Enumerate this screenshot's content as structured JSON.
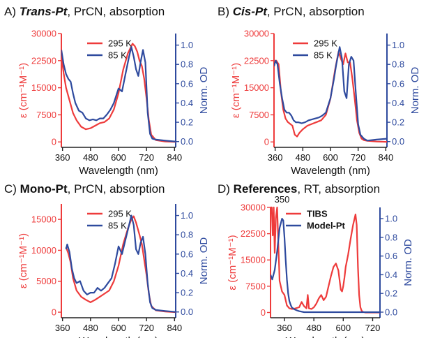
{
  "colors": {
    "red": "#ee3b3b",
    "blue": "#2e4a9e",
    "axis": "#222222"
  },
  "chart_data": [
    {
      "type": "line",
      "panel_label": "A)",
      "title_bold": "Trans-Pt",
      "title_bold_italic": true,
      "title_rest": ", PrCN, absorption",
      "xlabel": "Wavelength (nm)",
      "ylabel_left": "ε (cm⁻¹M⁻¹)",
      "ylabel_right": "Norm. OD",
      "xlim": [
        355,
        845
      ],
      "xticks": [
        "360",
        "480",
        "600",
        "720",
        "840"
      ],
      "ylim_left": [
        -1500,
        30000
      ],
      "yticks_left": [
        "0",
        "7500",
        "15000",
        "22500",
        "30000"
      ],
      "ylim_right": [
        -0.06,
        1.12
      ],
      "yticks_right": [
        "0.0",
        "0.2",
        "0.4",
        "0.6",
        "0.8",
        "1.0"
      ],
      "legend_position": "top-left",
      "series": [
        {
          "name": "295 K",
          "axis": "left",
          "color": "red",
          "x": [
            355,
            365,
            375,
            390,
            405,
            420,
            440,
            460,
            480,
            500,
            520,
            540,
            560,
            580,
            600,
            620,
            640,
            660,
            670,
            680,
            690,
            700,
            710,
            720,
            730,
            740,
            760,
            800,
            845
          ],
          "y": [
            24000,
            19000,
            15000,
            11500,
            8000,
            6000,
            4200,
            3500,
            3800,
            4500,
            5200,
            5500,
            6500,
            9000,
            13500,
            20000,
            24500,
            27200,
            26500,
            25000,
            22500,
            21000,
            17500,
            12000,
            6000,
            2000,
            500,
            100,
            0
          ]
        },
        {
          "name": "85 K",
          "axis": "right",
          "color": "blue",
          "x": [
            355,
            365,
            375,
            385,
            395,
            405,
            415,
            430,
            445,
            460,
            475,
            490,
            505,
            520,
            535,
            550,
            565,
            580,
            600,
            615,
            630,
            645,
            655,
            665,
            675,
            685,
            695,
            705,
            715,
            725,
            735,
            745,
            760,
            800,
            845
          ],
          "y": [
            0.95,
            0.8,
            0.7,
            0.65,
            0.62,
            0.5,
            0.4,
            0.32,
            0.3,
            0.24,
            0.22,
            0.23,
            0.22,
            0.24,
            0.24,
            0.28,
            0.33,
            0.4,
            0.55,
            0.52,
            0.7,
            0.88,
            0.98,
            0.88,
            0.75,
            0.68,
            0.83,
            0.95,
            0.82,
            0.3,
            0.08,
            0.03,
            0.02,
            0.01,
            0.0
          ]
        }
      ]
    },
    {
      "type": "line",
      "panel_label": "B)",
      "title_bold": "Cis-Pt",
      "title_bold_italic": true,
      "title_rest": ", PrCN, absorption",
      "xlabel": "Wavelength (nm)",
      "ylabel_left": "ε (cm⁻¹M⁻¹)",
      "ylabel_right": "Norm. OD",
      "xlim": [
        355,
        845
      ],
      "xticks": [
        "360",
        "480",
        "600",
        "720",
        "840"
      ],
      "ylim_left": [
        -1500,
        30000
      ],
      "yticks_left": [
        "0",
        "7500",
        "15000",
        "22500",
        "30000"
      ],
      "ylim_right": [
        -0.06,
        1.12
      ],
      "yticks_right": [
        "0.0",
        "0.2",
        "0.4",
        "0.6",
        "0.8",
        "1.0"
      ],
      "legend_position": "top-center",
      "series": [
        {
          "name": "295 K",
          "axis": "left",
          "color": "red",
          "x": [
            355,
            365,
            375,
            385,
            395,
            405,
            415,
            425,
            435,
            445,
            455,
            465,
            480,
            500,
            520,
            540,
            560,
            580,
            600,
            620,
            635,
            645,
            655,
            665,
            675,
            685,
            695,
            705,
            715,
            725,
            735,
            745,
            760,
            800,
            845
          ],
          "y": [
            22000,
            22500,
            21500,
            14000,
            9000,
            6500,
            5500,
            5000,
            4500,
            2000,
            1500,
            2500,
            3500,
            4500,
            5000,
            5500,
            6000,
            7500,
            12000,
            20000,
            25000,
            23000,
            21500,
            24500,
            22000,
            22000,
            17500,
            12000,
            6000,
            2500,
            900,
            500,
            300,
            100,
            0
          ]
        },
        {
          "name": "85 K",
          "axis": "right",
          "color": "blue",
          "x": [
            355,
            362,
            370,
            380,
            390,
            400,
            410,
            420,
            430,
            440,
            450,
            460,
            475,
            490,
            505,
            520,
            535,
            550,
            565,
            580,
            600,
            615,
            625,
            640,
            650,
            660,
            670,
            680,
            690,
            700,
            710,
            720,
            730,
            745,
            760,
            800,
            845
          ],
          "y": [
            0.78,
            0.84,
            0.8,
            0.6,
            0.45,
            0.33,
            0.3,
            0.3,
            0.27,
            0.22,
            0.2,
            0.2,
            0.19,
            0.2,
            0.22,
            0.23,
            0.24,
            0.25,
            0.27,
            0.3,
            0.45,
            0.65,
            0.8,
            0.98,
            0.86,
            0.52,
            0.45,
            0.8,
            0.88,
            0.84,
            0.5,
            0.18,
            0.07,
            0.03,
            0.01,
            0.02,
            0.03
          ]
        }
      ]
    },
    {
      "type": "line",
      "panel_label": "C)",
      "title_bold": "Mono-Pt",
      "title_bold_italic": false,
      "title_rest": ", PrCN, absorption",
      "xlabel": "Wavelength (nm)",
      "ylabel_left": "ε (cm⁻¹M⁻¹)",
      "ylabel_right": "Norm. OD",
      "xlim": [
        355,
        845
      ],
      "xticks": [
        "360",
        "480",
        "600",
        "720",
        "840"
      ],
      "ylim_left": [
        -900,
        17500
      ],
      "yticks_left": [
        "0",
        "5000",
        "10000",
        "15000"
      ],
      "ylim_right": [
        -0.06,
        1.12
      ],
      "yticks_right": [
        "0.0",
        "0.2",
        "0.4",
        "0.6",
        "0.8",
        "1.0"
      ],
      "legend_position": "top-left",
      "series": [
        {
          "name": "295 K",
          "axis": "left",
          "color": "red",
          "x": [
            375,
            385,
            395,
            405,
            420,
            440,
            460,
            480,
            500,
            520,
            540,
            560,
            580,
            600,
            620,
            640,
            655,
            665,
            675,
            690,
            700,
            710,
            720,
            730,
            740,
            760,
            800,
            845
          ],
          "y": [
            10500,
            9500,
            8000,
            5500,
            3500,
            2500,
            2000,
            1600,
            2000,
            2500,
            3000,
            3500,
            5000,
            7500,
            11000,
            13500,
            15000,
            15500,
            14500,
            12500,
            11000,
            8500,
            6000,
            3000,
            1000,
            300,
            100,
            0
          ]
        },
        {
          "name": "85 K",
          "axis": "right",
          "color": "blue",
          "x": [
            375,
            380,
            390,
            400,
            410,
            420,
            435,
            450,
            465,
            480,
            495,
            510,
            525,
            540,
            555,
            570,
            585,
            600,
            615,
            630,
            645,
            655,
            665,
            675,
            685,
            695,
            705,
            715,
            725,
            735,
            745,
            760,
            800,
            845
          ],
          "y": [
            0.65,
            0.7,
            0.62,
            0.45,
            0.35,
            0.3,
            0.32,
            0.22,
            0.18,
            0.2,
            0.2,
            0.25,
            0.22,
            0.25,
            0.3,
            0.35,
            0.5,
            0.68,
            0.6,
            0.75,
            0.9,
            1.0,
            0.9,
            0.65,
            0.6,
            0.72,
            0.78,
            0.6,
            0.3,
            0.1,
            0.04,
            0.02,
            0.01,
            0.0
          ]
        }
      ]
    },
    {
      "type": "line",
      "panel_label": "D)",
      "title_bold": "References",
      "title_bold_italic": false,
      "title_rest": ", RT, absorption",
      "xlabel": "Wavelength (nm)",
      "ylabel_left": "ε (cm⁻¹M⁻¹)",
      "ylabel_right": "Norm. OD",
      "xlim": [
        303,
        750
      ],
      "xticks": [
        "360",
        "480",
        "600",
        "720"
      ],
      "extra_ticks_outside_labels": [
        {
          "value": 350,
          "label": "350"
        }
      ],
      "ylim_left": [
        -1500,
        30000
      ],
      "yticks_left": [
        "0",
        "7500",
        "15000",
        "22500",
        "30000"
      ],
      "ylim_right": [
        -0.06,
        1.12
      ],
      "yticks_right": [
        "0.0",
        "0.2",
        "0.4",
        "0.6",
        "0.8",
        "1.0"
      ],
      "legend_position": "top-center",
      "series": [
        {
          "name": "TIBS",
          "axis": "left",
          "color": "red",
          "bold_label": true,
          "x": [
            303,
            308,
            312,
            316,
            320,
            325,
            330,
            340,
            350,
            360,
            370,
            380,
            390,
            400,
            410,
            420,
            430,
            440,
            450,
            455,
            460,
            470,
            480,
            490,
            500,
            510,
            520,
            530,
            540,
            550,
            560,
            570,
            580,
            590,
            595,
            600,
            605,
            610,
            620,
            630,
            640,
            650,
            655,
            660,
            665,
            670,
            675,
            680,
            690,
            700,
            750
          ],
          "y": [
            30000,
            30000,
            22000,
            30000,
            17000,
            27000,
            30000,
            9000,
            6000,
            5000,
            2000,
            1200,
            1000,
            1100,
            1300,
            1500,
            3000,
            1800,
            1200,
            5000,
            1200,
            1000,
            1500,
            2500,
            4000,
            5000,
            3500,
            4500,
            7500,
            10500,
            13000,
            14000,
            12000,
            6500,
            6000,
            7500,
            10000,
            13000,
            16500,
            21000,
            25000,
            28000,
            25000,
            13000,
            5000,
            1500,
            500,
            200,
            0,
            0,
            0
          ]
        },
        {
          "name": "Model-Pt",
          "axis": "right",
          "color": "blue",
          "bold_label": true,
          "x": [
            303,
            310,
            320,
            330,
            340,
            350,
            355,
            360,
            365,
            370,
            375,
            380,
            385,
            390,
            400,
            410,
            420,
            440,
            480,
            560,
            640,
            750
          ],
          "y": [
            0.4,
            0.35,
            0.45,
            0.65,
            0.9,
            1.0,
            0.98,
            0.8,
            0.55,
            0.35,
            0.2,
            0.12,
            0.08,
            0.05,
            0.03,
            0.02,
            0.01,
            0.0,
            0.0,
            0.0,
            0.0,
            0.0
          ]
        }
      ]
    }
  ]
}
